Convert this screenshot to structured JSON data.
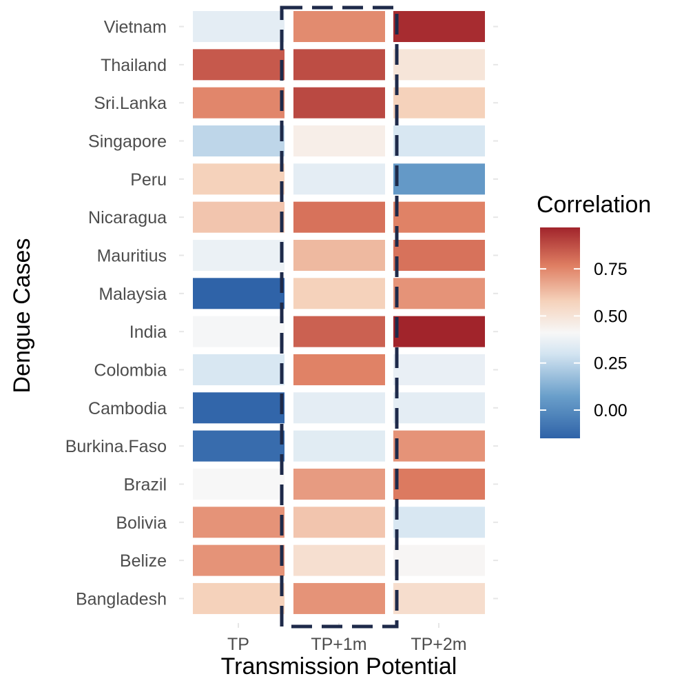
{
  "chart_data": {
    "type": "heatmap",
    "xlabel": "Transmission Potential",
    "ylabel": "Dengue Cases",
    "x_categories": [
      "TP",
      "TP+1m",
      "TP+2m"
    ],
    "y_categories": [
      "Vietnam",
      "Thailand",
      "Sri.Lanka",
      "Singapore",
      "Peru",
      "Nicaragua",
      "Mauritius",
      "Malaysia",
      "India",
      "Colombia",
      "Cambodia",
      "Burkina.Faso",
      "Brazil",
      "Bolivia",
      "Belize",
      "Bangladesh"
    ],
    "values": [
      [
        0.27,
        0.72,
        0.95
      ],
      [
        0.84,
        0.87,
        0.45
      ],
      [
        0.73,
        0.88,
        0.55
      ],
      [
        0.17,
        0.4,
        0.22
      ],
      [
        0.55,
        0.27,
        0.03
      ],
      [
        0.58,
        0.78,
        0.74
      ],
      [
        0.3,
        0.61,
        0.78
      ],
      [
        -0.15,
        0.55,
        0.7
      ],
      [
        0.34,
        0.82,
        0.97
      ],
      [
        0.22,
        0.74,
        0.29
      ],
      [
        -0.14,
        0.27,
        0.27
      ],
      [
        -0.12,
        0.26,
        0.7
      ],
      [
        0.35,
        0.68,
        0.76
      ],
      [
        0.7,
        0.58,
        0.22
      ],
      [
        0.7,
        0.48,
        0.36
      ],
      [
        0.55,
        0.7,
        0.49
      ]
    ],
    "highlight_column": "TP+1m",
    "legend": {
      "title": "Correlation",
      "position": "right",
      "range": [
        -0.15,
        0.97
      ],
      "ticks": [
        0.0,
        0.25,
        0.5,
        0.75
      ],
      "tick_labels": [
        "0.00",
        "0.25",
        "0.50",
        "0.75"
      ]
    },
    "grid": false,
    "colors": {
      "low": "#2f63a8",
      "mid": "#f7f7f7",
      "high": "#a1242b",
      "highlight_border": "#1e2a4a"
    }
  }
}
